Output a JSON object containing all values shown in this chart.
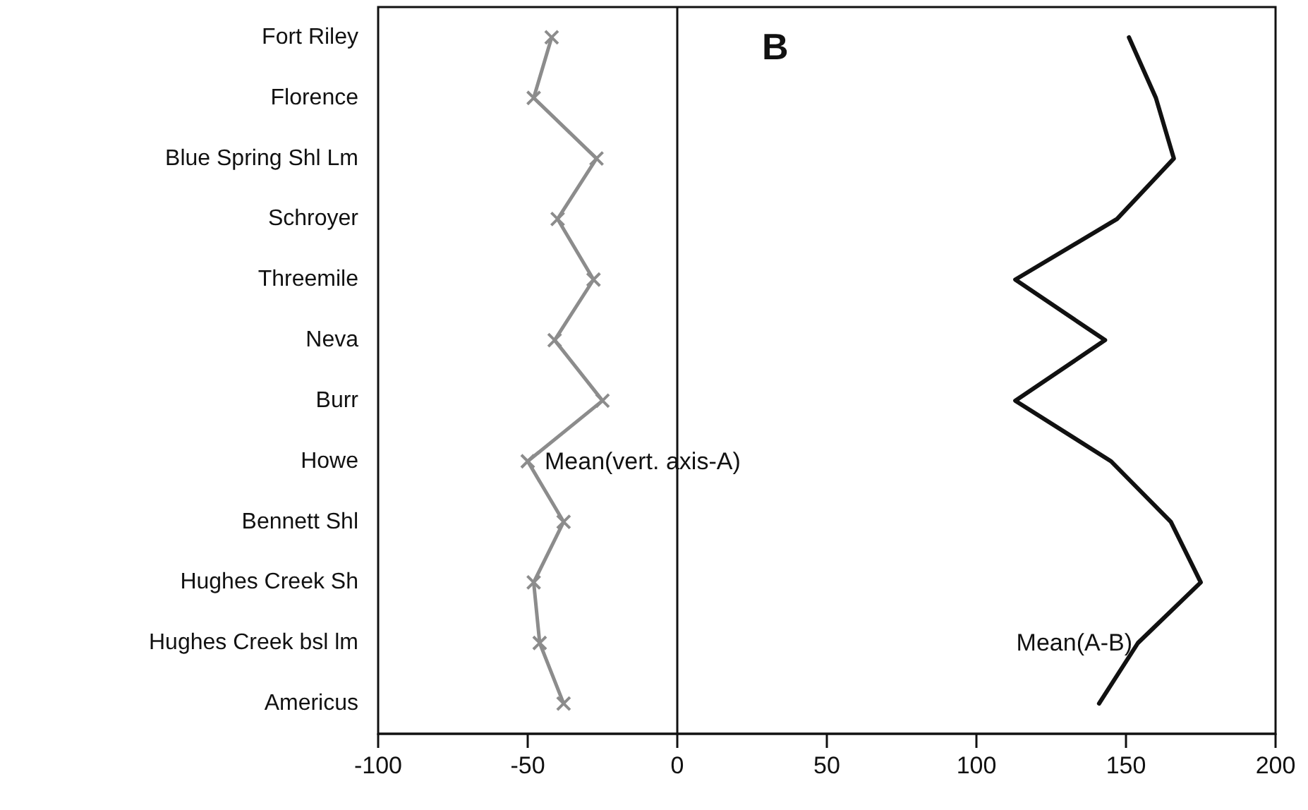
{
  "chart_data": {
    "type": "line",
    "orientation": "horizontal",
    "categories": [
      "Fort Riley",
      "Florence",
      "Blue Spring Shl Lm",
      "Schroyer",
      "Threemile",
      "Neva",
      "Burr",
      "Howe",
      "Bennett Shl",
      "Hughes Creek Sh",
      "Hughes Creek bsl lm",
      "Americus"
    ],
    "series": [
      {
        "name": "Mean(vert. axis-A)",
        "color": "#8c8c8c",
        "marker": "cross",
        "values": [
          -42,
          -48,
          -27,
          -40,
          -28,
          -41,
          -25,
          -50,
          -38,
          -48,
          -46,
          -38
        ]
      },
      {
        "name": "Mean(A-B)",
        "color": "#111111",
        "marker": "none",
        "values": [
          151,
          160,
          166,
          147,
          113,
          143,
          113,
          145,
          165,
          175,
          154,
          141
        ]
      }
    ],
    "xlim": [
      -100,
      200
    ],
    "xticks": [
      -100,
      -50,
      0,
      50,
      100,
      150,
      200
    ],
    "ref_lines": [
      {
        "axis": "x",
        "value": 0,
        "color": "#111111"
      }
    ],
    "annotations": [
      "B"
    ],
    "grid": false,
    "legend": false
  }
}
